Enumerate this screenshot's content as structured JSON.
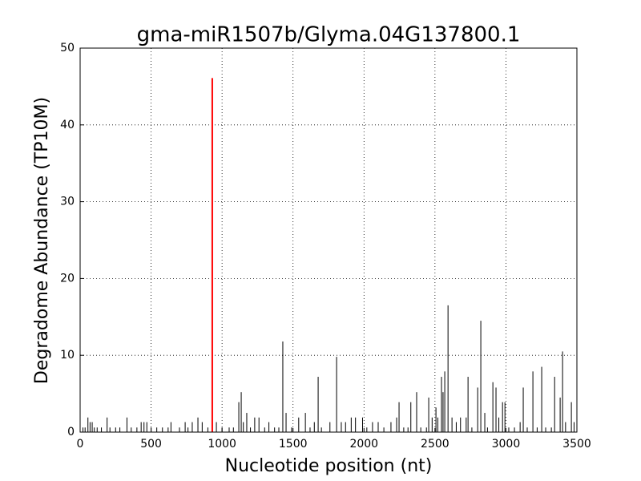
{
  "chart_data": {
    "type": "bar",
    "title": "gma-miR1507b/Glyma.04G137800.1",
    "x_label": "Nucleotide position (nt)",
    "y_label": "Degradome Abundance (TP10M)",
    "xlim": [
      0,
      3500
    ],
    "xticks": [
      0,
      500,
      1000,
      1500,
      2000,
      2500,
      3000,
      3500
    ],
    "ylim": [
      0,
      50
    ],
    "yticks": [
      0,
      10,
      20,
      30,
      40,
      50
    ],
    "grid": true,
    "series": [
      {
        "color": "#000000",
        "x": [
          20,
          35,
          55,
          70,
          85,
          100,
          120,
          150,
          190,
          210,
          250,
          280,
          330,
          360,
          400,
          430,
          450,
          470,
          500,
          540,
          580,
          620,
          640,
          700,
          740,
          760,
          790,
          830,
          860,
          900,
          960,
          1000,
          1050,
          1080,
          1118,
          1135,
          1150,
          1174,
          1200,
          1230,
          1260,
          1300,
          1330,
          1370,
          1400,
          1428,
          1451,
          1490,
          1540,
          1587,
          1620,
          1650,
          1677,
          1700,
          1760,
          1807,
          1840,
          1870,
          1910,
          1940,
          1990,
          2020,
          2060,
          2100,
          2140,
          2190,
          2230,
          2247,
          2280,
          2310,
          2330,
          2371,
          2400,
          2440,
          2456,
          2480,
          2507,
          2520,
          2546,
          2557,
          2569,
          2592,
          2620,
          2650,
          2680,
          2720,
          2733,
          2760,
          2801,
          2823,
          2851,
          2870,
          2908,
          2930,
          2950,
          2976,
          2993,
          3020,
          3060,
          3100,
          3122,
          3150,
          3190,
          3220,
          3252,
          3280,
          3320,
          3343,
          3382,
          3399,
          3420,
          3461,
          3480
        ],
        "values": [
          0.6,
          0.6,
          1.9,
          1.3,
          1.3,
          0.6,
          0.6,
          0.6,
          1.9,
          0.6,
          0.6,
          0.6,
          1.9,
          0.6,
          0.6,
          1.3,
          1.3,
          1.3,
          0.6,
          0.6,
          0.6,
          0.6,
          1.3,
          0.6,
          1.3,
          0.6,
          1.3,
          1.9,
          1.3,
          0.6,
          1.3,
          0.6,
          0.6,
          0.6,
          3.9,
          5.2,
          1.3,
          2.5,
          0.6,
          1.9,
          1.9,
          0.6,
          1.3,
          0.6,
          0.6,
          11.8,
          2.5,
          0.6,
          1.9,
          2.5,
          0.6,
          1.3,
          7.2,
          0.6,
          1.3,
          9.8,
          1.3,
          1.3,
          1.9,
          1.9,
          1.9,
          0.6,
          1.3,
          1.3,
          0.6,
          1.3,
          1.9,
          3.9,
          0.6,
          0.6,
          3.9,
          5.2,
          0.6,
          0.6,
          4.5,
          1.9,
          3.2,
          1.9,
          7.2,
          5.2,
          7.9,
          16.5,
          1.9,
          1.3,
          1.9,
          1.9,
          7.2,
          0.6,
          5.8,
          14.5,
          2.5,
          0.6,
          6.5,
          5.8,
          1.9,
          3.9,
          3.9,
          0.6,
          0.6,
          1.3,
          5.8,
          0.6,
          7.9,
          0.6,
          8.5,
          0.6,
          0.6,
          7.2,
          4.5,
          10.5,
          1.3,
          3.9,
          1.3
        ]
      },
      {
        "color": "#ff0000",
        "x": [
          931
        ],
        "values": [
          46.1
        ]
      }
    ]
  }
}
